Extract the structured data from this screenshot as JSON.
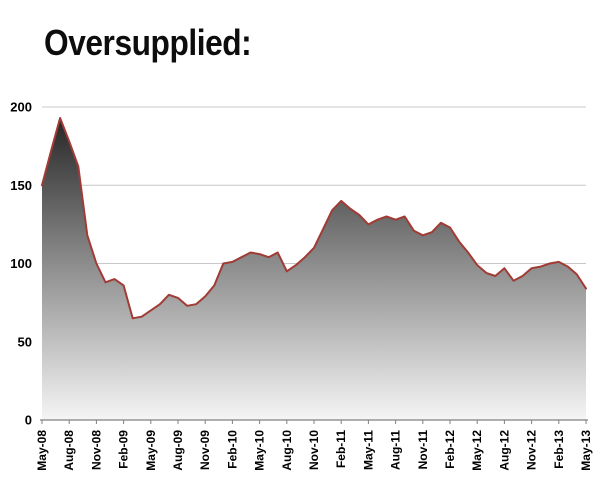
{
  "title": "Oversupplied:",
  "chart_data": {
    "type": "area",
    "title": "Oversupplied:",
    "x": [
      "May-08",
      "Jun-08",
      "Jul-08",
      "Aug-08",
      "Sep-08",
      "Oct-08",
      "Nov-08",
      "Dec-08",
      "Jan-09",
      "Feb-09",
      "Mar-09",
      "Apr-09",
      "May-09",
      "Jun-09",
      "Jul-09",
      "Aug-09",
      "Sep-09",
      "Oct-09",
      "Nov-09",
      "Dec-09",
      "Jan-10",
      "Feb-10",
      "Mar-10",
      "Apr-10",
      "May-10",
      "Jun-10",
      "Jul-10",
      "Aug-10",
      "Sep-10",
      "Oct-10",
      "Nov-10",
      "Dec-10",
      "Jan-11",
      "Feb-11",
      "Mar-11",
      "Apr-11",
      "May-11",
      "Jun-11",
      "Jul-11",
      "Aug-11",
      "Sep-11",
      "Oct-11",
      "Nov-11",
      "Dec-11",
      "Jan-12",
      "Feb-12",
      "Mar-12",
      "Apr-12",
      "May-12",
      "Jun-12",
      "Jul-12",
      "Aug-12",
      "Sep-12",
      "Oct-12",
      "Nov-12",
      "Dec-12",
      "Jan-13",
      "Feb-13",
      "Mar-13",
      "Apr-13",
      "May-13"
    ],
    "values": [
      150,
      172,
      193,
      178,
      162,
      118,
      100,
      88,
      90,
      86,
      65,
      66,
      70,
      74,
      80,
      78,
      73,
      74,
      79,
      86,
      100,
      101,
      104,
      107,
      106,
      104,
      107,
      95,
      99,
      104,
      110,
      122,
      134,
      140,
      135,
      131,
      125,
      128,
      130,
      128,
      130,
      121,
      118,
      120,
      126,
      123,
      114,
      107,
      99,
      94,
      92,
      97,
      89,
      92,
      97,
      98,
      100,
      101,
      98,
      93,
      84
    ],
    "xtick_labels": [
      "May-08",
      "Aug-08",
      "Nov-08",
      "Feb-09",
      "May-09",
      "Aug-09",
      "Nov-09",
      "Feb-10",
      "May-10",
      "Aug-10",
      "Nov-10",
      "Feb-11",
      "May-11",
      "Aug-11",
      "Nov-11",
      "Feb-12",
      "May-12",
      "Aug-12",
      "Nov-12",
      "Feb-13",
      "May-13"
    ],
    "tick_every": 3,
    "xlabel": "",
    "ylabel": "",
    "ylim": [
      0,
      200
    ],
    "yticks": [
      0,
      50,
      100,
      150,
      200
    ],
    "grid": "horizontal",
    "legend": "none",
    "colors": {
      "line": "#a03b35",
      "fill_top": "#262626",
      "fill_mid": "#8c8c8c",
      "fill_bottom": "#f5f5f5",
      "gridline": "#c8c8c8",
      "axis": "#808080",
      "label": "#000000"
    }
  }
}
